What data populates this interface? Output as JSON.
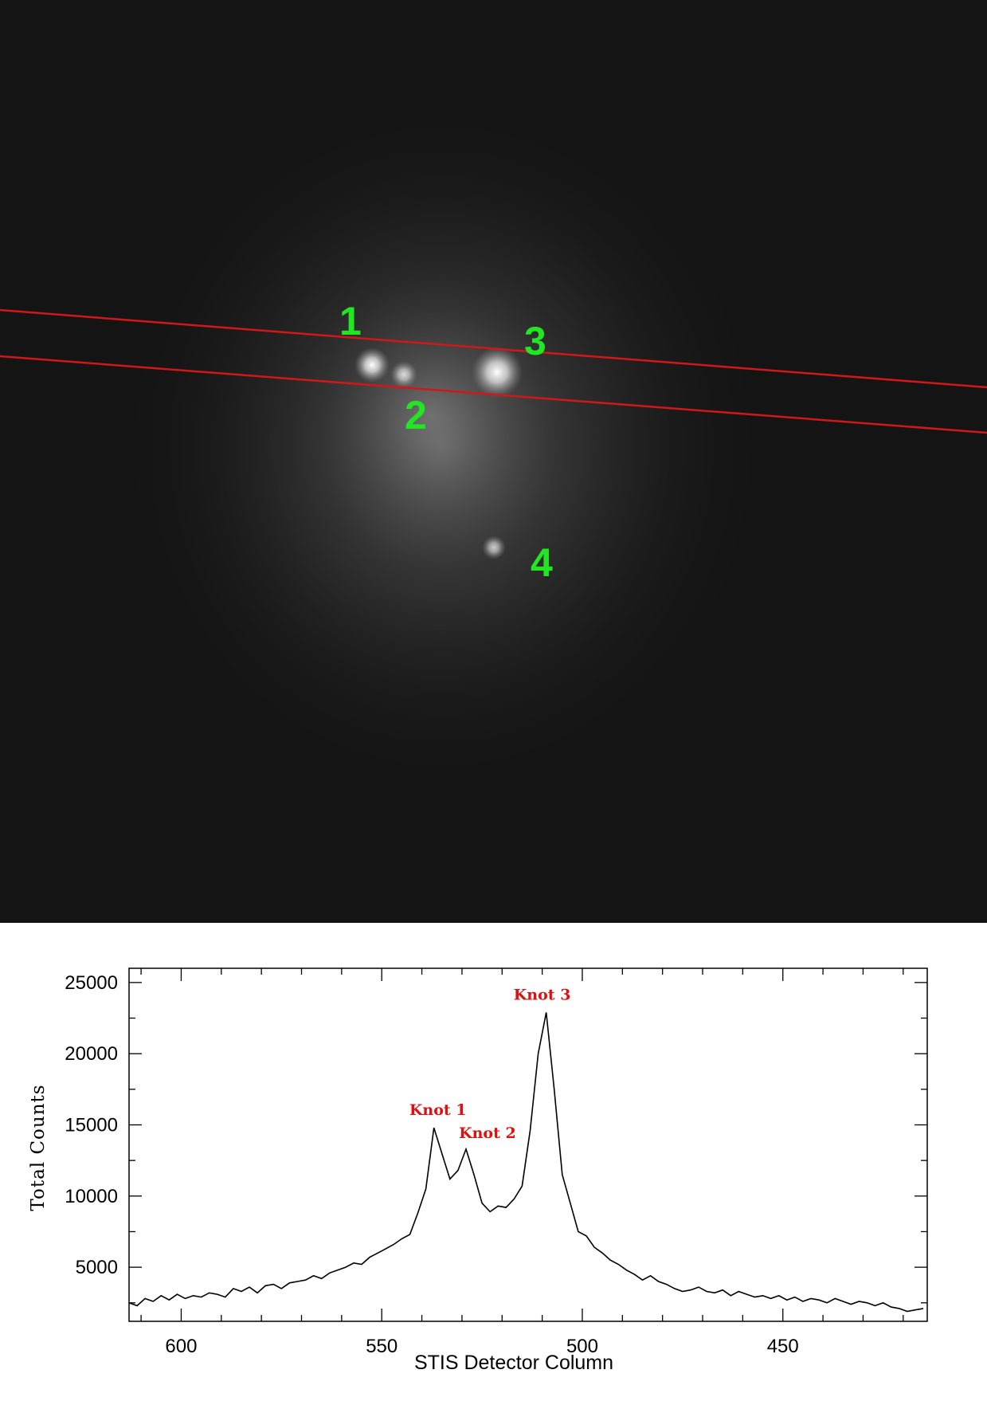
{
  "image": {
    "labels": [
      {
        "text": "1",
        "color": "#22e622"
      },
      {
        "text": "2",
        "color": "#22e622"
      },
      {
        "text": "3",
        "color": "#22e622"
      },
      {
        "text": "4",
        "color": "#22e622"
      }
    ],
    "slit_color": "#d01818"
  },
  "chart_data": {
    "type": "line",
    "xlabel": "STIS Detector Column",
    "ylabel": "Total Counts",
    "xlim": [
      613,
      414
    ],
    "ylim": [
      1200,
      26000
    ],
    "xticks": [
      600,
      550,
      500,
      450
    ],
    "yticks": [
      5000,
      10000,
      15000,
      20000,
      25000
    ],
    "line_color": "#000000",
    "annotation_color": "#e01010",
    "annotations": [
      {
        "text": "Knot 1",
        "x": 536,
        "y": 14800
      },
      {
        "text": "Knot 2",
        "x": 530,
        "y": 13300
      },
      {
        "text": "Knot 3",
        "x": 510,
        "y": 22900
      }
    ],
    "x": [
      613,
      611,
      609,
      607,
      605,
      603,
      601,
      599,
      597,
      595,
      593,
      591,
      589,
      587,
      585,
      583,
      581,
      579,
      577,
      575,
      573,
      571,
      569,
      567,
      565,
      563,
      561,
      559,
      557,
      555,
      553,
      551,
      549,
      547,
      545,
      543,
      541,
      539,
      537,
      535,
      533,
      531,
      529,
      527,
      525,
      523,
      521,
      519,
      517,
      515,
      513,
      511,
      509,
      507,
      505,
      503,
      501,
      499,
      497,
      495,
      493,
      491,
      489,
      487,
      485,
      483,
      481,
      479,
      477,
      475,
      473,
      471,
      469,
      467,
      465,
      463,
      461,
      459,
      457,
      455,
      453,
      451,
      449,
      447,
      445,
      443,
      441,
      439,
      437,
      435,
      433,
      431,
      429,
      427,
      425,
      423,
      421,
      419,
      417,
      415
    ],
    "y": [
      2500,
      2300,
      2800,
      2600,
      3000,
      2700,
      3100,
      2800,
      3000,
      2900,
      3200,
      3100,
      2900,
      3500,
      3300,
      3600,
      3200,
      3700,
      3800,
      3500,
      3900,
      4000,
      4100,
      4400,
      4200,
      4600,
      4800,
      5000,
      5300,
      5200,
      5700,
      6000,
      6300,
      6600,
      7000,
      7300,
      8800,
      10500,
      14800,
      13000,
      11200,
      11800,
      13300,
      11500,
      9500,
      8900,
      9300,
      9200,
      9800,
      10700,
      14600,
      20000,
      22900,
      17500,
      11500,
      9500,
      7500,
      7200,
      6400,
      6000,
      5500,
      5200,
      4800,
      4500,
      4100,
      4400,
      4000,
      3800,
      3500,
      3300,
      3400,
      3600,
      3300,
      3200,
      3400,
      3000,
      3300,
      3100,
      2900,
      3000,
      2800,
      3000,
      2700,
      2900,
      2600,
      2800,
      2700,
      2500,
      2800,
      2600,
      2400,
      2600,
      2500,
      2300,
      2500,
      2200,
      2100,
      1900,
      2000,
      2100
    ]
  }
}
